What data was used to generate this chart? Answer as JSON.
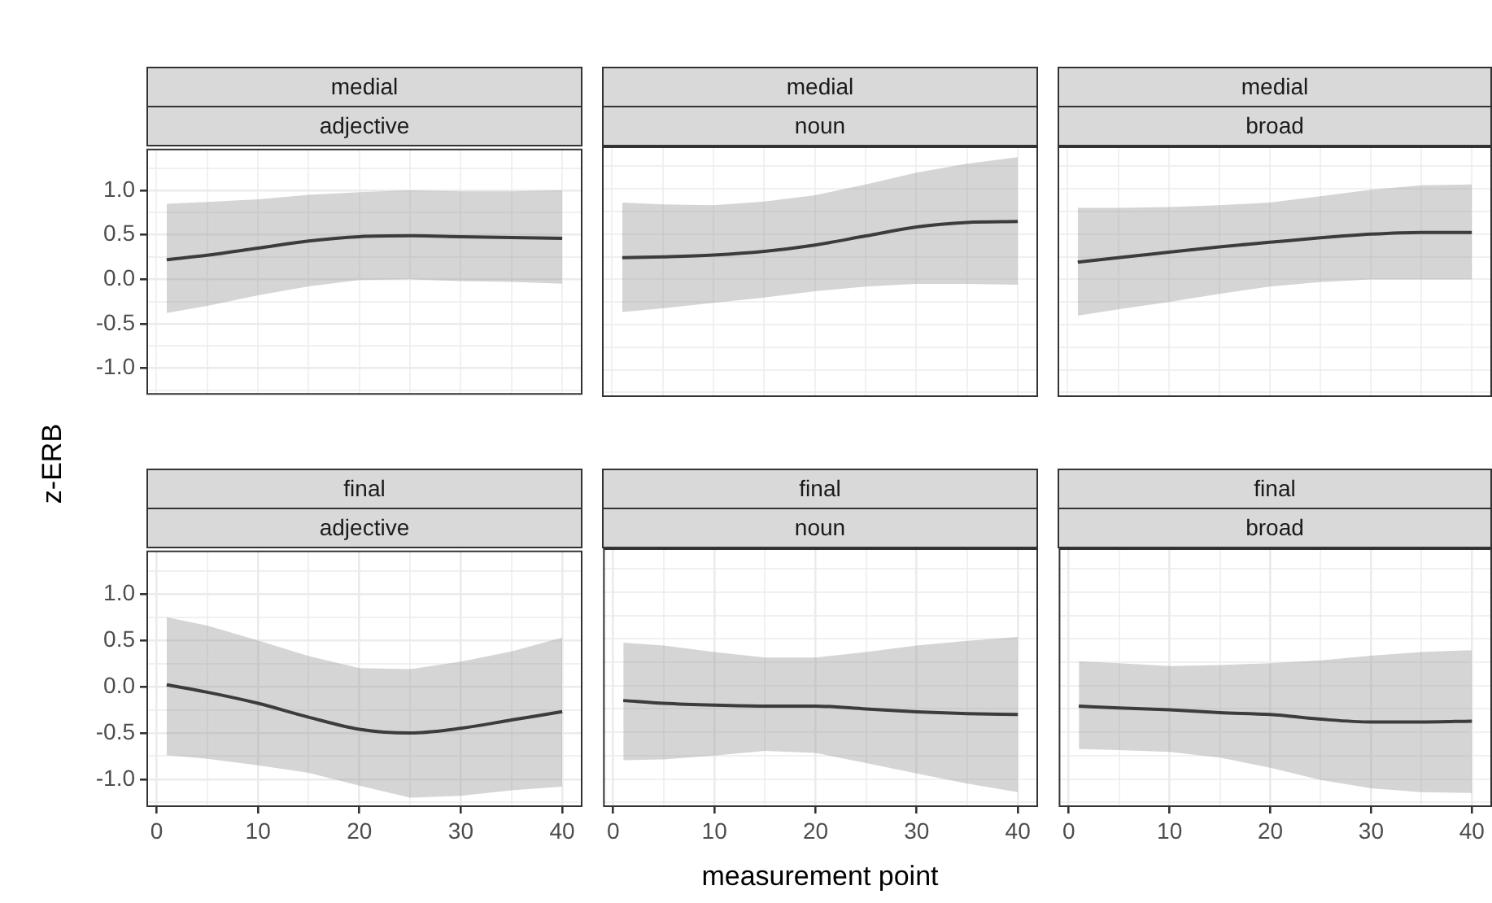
{
  "chart_data": [
    {
      "type": "line",
      "title": "medial",
      "subtitle": "adjective",
      "ylabel": "z-ERB",
      "x": [
        1,
        5,
        10,
        15,
        20,
        25,
        30,
        35,
        40
      ],
      "xlim": [
        -1,
        42
      ],
      "ylim": [
        -1.3,
        1.47
      ],
      "xticks": [
        {
          "value": 0,
          "label": null
        },
        {
          "value": 5,
          "label": null
        },
        {
          "value": 10,
          "label": null
        },
        {
          "value": 15,
          "label": null
        },
        {
          "value": 20,
          "label": null
        },
        {
          "value": 25,
          "label": null
        },
        {
          "value": 30,
          "label": null
        },
        {
          "value": 35,
          "label": null
        },
        {
          "value": 40,
          "label": null
        }
      ],
      "yticks": [
        {
          "value": -1.25,
          "label": null
        },
        {
          "value": -1,
          "label": "-1.0"
        },
        {
          "value": -0.75,
          "label": null
        },
        {
          "value": -0.5,
          "label": "-0.5"
        },
        {
          "value": -0.25,
          "label": null
        },
        {
          "value": 0,
          "label": "0.0"
        },
        {
          "value": 0.25,
          "label": null
        },
        {
          "value": 0.5,
          "label": "0.5"
        },
        {
          "value": 0.75,
          "label": null
        },
        {
          "value": 1,
          "label": "1.0"
        },
        {
          "value": 1.25,
          "label": null
        }
      ],
      "grid": true,
      "tick_labels": "y",
      "series": [
        {
          "color": "#000000",
          "values": [
            0.22,
            0.27,
            0.35,
            0.43,
            0.48,
            0.49,
            0.48,
            0.47,
            0.46
          ],
          "lower": [
            -0.38,
            -0.3,
            -0.18,
            -0.08,
            -0.01,
            0.0,
            -0.02,
            -0.03,
            -0.05
          ],
          "upper": [
            0.85,
            0.87,
            0.9,
            0.95,
            0.98,
            1.0,
            0.99,
            0.99,
            1.0
          ]
        }
      ]
    },
    {
      "type": "line",
      "title": "medial",
      "subtitle": "noun",
      "x": [
        1,
        5,
        10,
        15,
        20,
        25,
        30,
        35,
        40
      ],
      "xlim": [
        -1,
        42
      ],
      "ylim": [
        -1.3,
        1.47
      ],
      "xticks": [
        {
          "value": 0,
          "label": null
        },
        {
          "value": 5,
          "label": null
        },
        {
          "value": 10,
          "label": null
        },
        {
          "value": 15,
          "label": null
        },
        {
          "value": 20,
          "label": null
        },
        {
          "value": 25,
          "label": null
        },
        {
          "value": 30,
          "label": null
        },
        {
          "value": 35,
          "label": null
        },
        {
          "value": 40,
          "label": null
        }
      ],
      "yticks": [
        {
          "value": -1.25,
          "label": null
        },
        {
          "value": -1,
          "label": null
        },
        {
          "value": -0.75,
          "label": null
        },
        {
          "value": -0.5,
          "label": null
        },
        {
          "value": -0.25,
          "label": null
        },
        {
          "value": 0,
          "label": null
        },
        {
          "value": 0.25,
          "label": null
        },
        {
          "value": 0.5,
          "label": null
        },
        {
          "value": 0.75,
          "label": null
        },
        {
          "value": 1,
          "label": null
        },
        {
          "value": 1.25,
          "label": null
        }
      ],
      "grid": true,
      "tick_labels": false,
      "series": [
        {
          "color": "#000000",
          "values": [
            0.24,
            0.25,
            0.27,
            0.31,
            0.38,
            0.48,
            0.58,
            0.63,
            0.64
          ],
          "lower": [
            -0.36,
            -0.32,
            -0.26,
            -0.2,
            -0.13,
            -0.08,
            -0.05,
            -0.05,
            -0.06
          ],
          "upper": [
            0.85,
            0.83,
            0.82,
            0.86,
            0.93,
            1.05,
            1.18,
            1.28,
            1.35
          ]
        }
      ]
    },
    {
      "type": "line",
      "title": "medial",
      "subtitle": "broad",
      "x": [
        1,
        5,
        10,
        15,
        20,
        25,
        30,
        35,
        40
      ],
      "xlim": [
        -1,
        42
      ],
      "ylim": [
        -1.3,
        1.47
      ],
      "xticks": [
        {
          "value": 0,
          "label": null
        },
        {
          "value": 5,
          "label": null
        },
        {
          "value": 10,
          "label": null
        },
        {
          "value": 15,
          "label": null
        },
        {
          "value": 20,
          "label": null
        },
        {
          "value": 25,
          "label": null
        },
        {
          "value": 30,
          "label": null
        },
        {
          "value": 35,
          "label": null
        },
        {
          "value": 40,
          "label": null
        }
      ],
      "yticks": [
        {
          "value": -1.25,
          "label": null
        },
        {
          "value": -1,
          "label": null
        },
        {
          "value": -0.75,
          "label": null
        },
        {
          "value": -0.5,
          "label": null
        },
        {
          "value": -0.25,
          "label": null
        },
        {
          "value": 0,
          "label": null
        },
        {
          "value": 0.25,
          "label": null
        },
        {
          "value": 0.5,
          "label": null
        },
        {
          "value": 0.75,
          "label": null
        },
        {
          "value": 1,
          "label": null
        },
        {
          "value": 1.25,
          "label": null
        }
      ],
      "grid": true,
      "tick_labels": false,
      "series": [
        {
          "color": "#000000",
          "values": [
            0.19,
            0.24,
            0.3,
            0.36,
            0.41,
            0.46,
            0.5,
            0.52,
            0.52
          ],
          "lower": [
            -0.4,
            -0.33,
            -0.25,
            -0.16,
            -0.08,
            -0.03,
            0.0,
            0.0,
            0.0
          ],
          "upper": [
            0.79,
            0.79,
            0.8,
            0.82,
            0.85,
            0.92,
            0.99,
            1.04,
            1.05
          ]
        }
      ]
    },
    {
      "type": "line",
      "title": "final",
      "subtitle": "adjective",
      "x": [
        1,
        5,
        10,
        15,
        20,
        25,
        30,
        35,
        40
      ],
      "xlim": [
        -1,
        42
      ],
      "ylim": [
        -1.3,
        1.47
      ],
      "xticks": [
        0,
        {
          "value": 5,
          "label": null
        },
        10,
        {
          "value": 15,
          "label": null
        },
        20,
        {
          "value": 25,
          "label": null
        },
        30,
        {
          "value": 35,
          "label": null
        },
        40
      ],
      "yticks": [
        {
          "value": -1.25,
          "label": null
        },
        {
          "value": -1,
          "label": "-1.0"
        },
        {
          "value": -0.75,
          "label": null
        },
        {
          "value": -0.5,
          "label": "-0.5"
        },
        {
          "value": -0.25,
          "label": null
        },
        {
          "value": 0,
          "label": "0.0"
        },
        {
          "value": 0.25,
          "label": null
        },
        {
          "value": 0.5,
          "label": "0.5"
        },
        {
          "value": 0.75,
          "label": null
        },
        {
          "value": 1,
          "label": "1.0"
        },
        {
          "value": 1.25,
          "label": null
        }
      ],
      "grid": true,
      "series": [
        {
          "color": "#000000",
          "values": [
            0.02,
            -0.06,
            -0.18,
            -0.33,
            -0.46,
            -0.5,
            -0.45,
            -0.36,
            -0.27
          ],
          "lower": [
            -0.74,
            -0.78,
            -0.85,
            -0.93,
            -1.07,
            -1.2,
            -1.18,
            -1.12,
            -1.08
          ],
          "upper": [
            0.75,
            0.66,
            0.5,
            0.33,
            0.2,
            0.19,
            0.27,
            0.38,
            0.53
          ]
        }
      ]
    },
    {
      "type": "line",
      "title": "final",
      "subtitle": "noun",
      "xlabel": "measurement point",
      "x": [
        1,
        5,
        10,
        15,
        20,
        25,
        30,
        35,
        40
      ],
      "xlim": [
        -1,
        42
      ],
      "ylim": [
        -1.3,
        1.47
      ],
      "xticks": [
        0,
        {
          "value": 5,
          "label": null
        },
        10,
        {
          "value": 15,
          "label": null
        },
        20,
        {
          "value": 25,
          "label": null
        },
        30,
        {
          "value": 35,
          "label": null
        },
        40
      ],
      "yticks": [
        {
          "value": -1.25,
          "label": null
        },
        {
          "value": -1,
          "label": null
        },
        {
          "value": -0.75,
          "label": null
        },
        {
          "value": -0.5,
          "label": null
        },
        {
          "value": -0.25,
          "label": null
        },
        {
          "value": 0,
          "label": null
        },
        {
          "value": 0.25,
          "label": null
        },
        {
          "value": 0.5,
          "label": null
        },
        {
          "value": 0.75,
          "label": null
        },
        {
          "value": 1,
          "label": null
        },
        {
          "value": 1.25,
          "label": null
        }
      ],
      "grid": true,
      "tick_labels": "x",
      "series": [
        {
          "color": "#000000",
          "values": [
            -0.16,
            -0.19,
            -0.21,
            -0.22,
            -0.22,
            -0.25,
            -0.28,
            -0.3,
            -0.31
          ],
          "lower": [
            -0.8,
            -0.79,
            -0.75,
            -0.7,
            -0.72,
            -0.83,
            -0.94,
            -1.05,
            -1.14
          ],
          "upper": [
            0.46,
            0.43,
            0.36,
            0.3,
            0.3,
            0.36,
            0.43,
            0.48,
            0.52
          ]
        }
      ]
    },
    {
      "type": "line",
      "title": "final",
      "subtitle": "broad",
      "x": [
        1,
        5,
        10,
        15,
        20,
        25,
        30,
        35,
        40
      ],
      "xlim": [
        -1,
        42
      ],
      "ylim": [
        -1.3,
        1.47
      ],
      "xticks": [
        0,
        {
          "value": 5,
          "label": null
        },
        10,
        {
          "value": 15,
          "label": null
        },
        20,
        {
          "value": 25,
          "label": null
        },
        30,
        {
          "value": 35,
          "label": null
        },
        40
      ],
      "yticks": [
        {
          "value": -1.25,
          "label": null
        },
        {
          "value": -1,
          "label": null
        },
        {
          "value": -0.75,
          "label": null
        },
        {
          "value": -0.5,
          "label": null
        },
        {
          "value": -0.25,
          "label": null
        },
        {
          "value": 0,
          "label": null
        },
        {
          "value": 0.25,
          "label": null
        },
        {
          "value": 0.5,
          "label": null
        },
        {
          "value": 0.75,
          "label": null
        },
        {
          "value": 1,
          "label": null
        },
        {
          "value": 1.25,
          "label": null
        }
      ],
      "grid": true,
      "tick_labels": "x",
      "series": [
        {
          "color": "#000000",
          "values": [
            -0.22,
            -0.24,
            -0.26,
            -0.29,
            -0.31,
            -0.36,
            -0.39,
            -0.39,
            -0.38
          ],
          "lower": [
            -0.68,
            -0.69,
            -0.71,
            -0.77,
            -0.88,
            -1.01,
            -1.1,
            -1.14,
            -1.15
          ],
          "upper": [
            0.26,
            0.24,
            0.21,
            0.22,
            0.24,
            0.27,
            0.32,
            0.36,
            0.38
          ]
        }
      ]
    }
  ]
}
